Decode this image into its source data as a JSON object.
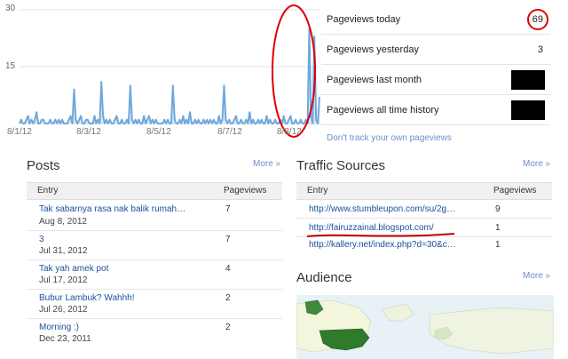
{
  "chart": {
    "y_ticks": [
      "30",
      "15"
    ],
    "x_ticks": [
      "8/1/12",
      "8/3/12",
      "8/5/12",
      "8/7/12",
      "8/8/12"
    ],
    "line_color": "#6fa8dc",
    "annotation_color": "#e00000"
  },
  "chart_data": {
    "type": "area",
    "x_tick_labels": [
      "8/1/12",
      "8/3/12",
      "8/5/12",
      "8/7/12",
      "8/8/12"
    ],
    "ylim": [
      0,
      30
    ],
    "values": [
      0,
      1,
      0,
      0,
      1,
      2,
      0,
      1,
      0,
      1,
      3,
      0,
      0,
      1,
      1,
      0,
      0,
      0,
      1,
      0,
      0,
      1,
      0,
      1,
      0,
      1,
      0,
      0,
      0,
      1,
      2,
      0,
      9,
      1,
      0,
      1,
      2,
      0,
      0,
      1,
      1,
      0,
      0,
      0,
      2,
      0,
      1,
      0,
      11,
      2,
      0,
      1,
      0,
      1,
      0,
      0,
      1,
      2,
      0,
      0,
      1,
      0,
      0,
      1,
      0,
      10,
      1,
      0,
      1,
      0,
      1,
      0,
      0,
      2,
      0,
      1,
      2,
      0,
      1,
      0,
      1,
      0,
      0,
      0,
      0,
      1,
      0,
      1,
      0,
      0,
      10,
      1,
      0,
      0,
      1,
      0,
      2,
      0,
      1,
      0,
      3,
      0,
      0,
      1,
      0,
      1,
      0,
      0,
      1,
      0,
      1,
      0,
      1,
      0,
      1,
      0,
      0,
      2,
      0,
      1,
      10,
      1,
      0,
      1,
      0,
      0,
      1,
      2,
      0,
      0,
      1,
      0,
      0,
      1,
      0,
      3,
      0,
      1,
      0,
      0,
      1,
      0,
      1,
      0,
      0,
      2,
      0,
      1,
      0,
      0,
      1,
      0,
      0,
      1,
      0,
      2,
      0,
      0,
      1,
      2,
      0,
      0,
      1,
      0,
      0,
      1,
      0,
      0,
      1,
      0,
      25,
      2,
      0,
      23,
      1,
      0,
      7
    ]
  },
  "stats": {
    "items": [
      {
        "label": "Pageviews today",
        "value": "69"
      },
      {
        "label": "Pageviews yesterday",
        "value": "3"
      },
      {
        "label": "Pageviews last month",
        "value": ""
      },
      {
        "label": "Pageviews all time history",
        "value": ""
      }
    ],
    "dont_track": "Don't track your own pageviews"
  },
  "posts": {
    "title": "Posts",
    "more": "More »",
    "col_entry": "Entry",
    "col_pageviews": "Pageviews",
    "rows": [
      {
        "title": "Tak sabarnya rasa nak balik rumah…",
        "date": "Aug 8, 2012",
        "views": "7"
      },
      {
        "title": "3",
        "date": "Jul 31, 2012",
        "views": "7"
      },
      {
        "title": "Tak yah amek pot",
        "date": "Jul 17, 2012",
        "views": "4"
      },
      {
        "title": "Bubur Lambuk? Wahhh!",
        "date": "Jul 26, 2012",
        "views": "2"
      },
      {
        "title": "Morning :)",
        "date": "Dec 23, 2011",
        "views": "2"
      }
    ]
  },
  "traffic": {
    "title": "Traffic Sources",
    "more": "More »",
    "col_entry": "Entry",
    "col_pageviews": "Pageviews",
    "rows": [
      {
        "url": "http://www.stumbleupon.com/su/2g…",
        "views": "9"
      },
      {
        "url": "http://fairuzzainal.blogspot.com/",
        "views": "1"
      },
      {
        "url": "http://kallery.net/index.php?d=30&c…",
        "views": "1"
      }
    ]
  },
  "audience": {
    "title": "Audience",
    "more": "More »"
  }
}
